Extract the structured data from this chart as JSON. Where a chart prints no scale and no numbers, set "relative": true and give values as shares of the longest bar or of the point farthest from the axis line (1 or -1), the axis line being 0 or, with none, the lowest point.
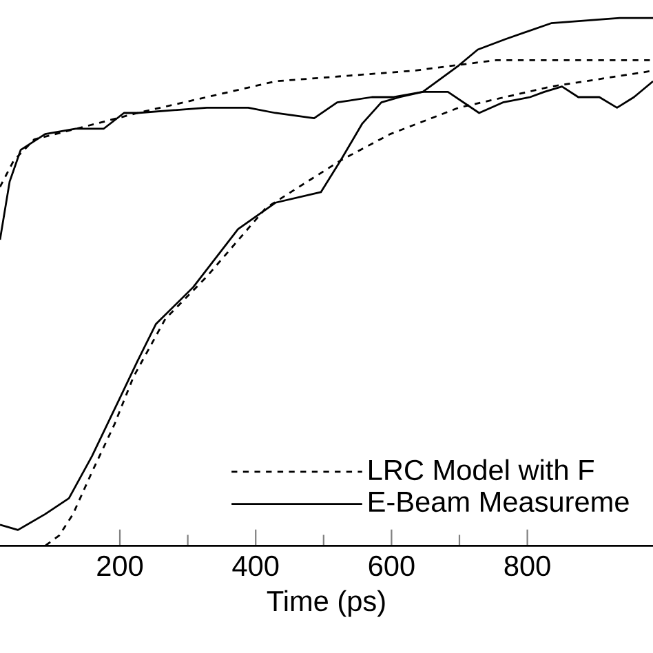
{
  "chart_data": {
    "type": "line",
    "xlabel": "Time (ps)",
    "relative": true,
    "xlim": [
      23.5,
      985
    ],
    "xticks": [
      200,
      400,
      600,
      800
    ],
    "grid": false,
    "legend": "bottom right",
    "marker": "none",
    "series": [
      {
        "name": "LRC Model with F",
        "color": "#000000",
        "line_style": "dashed",
        "x": [
          23.5,
          43.8,
          74,
          105,
          166,
          226,
          328,
          429,
          531,
          632,
          693,
          754,
          835,
          985
        ],
        "values": [
          0.68,
          0.73,
          0.77,
          0.78,
          0.8,
          0.82,
          0.85,
          0.88,
          0.89,
          0.9,
          0.91,
          0.92,
          0.92,
          0.92
        ]
      },
      {
        "name": "E-Beam Measureme",
        "color": "#000000",
        "line_style": "solid",
        "x": [
          23.5,
          37.7,
          54,
          90,
          135,
          176,
          206,
          226,
          328,
          389,
          429,
          486,
          520,
          571,
          602,
          646,
          683,
          729,
          764,
          804,
          825,
          851,
          875,
          906,
          932,
          957,
          985
        ],
        "values": [
          0.58,
          0.69,
          0.75,
          0.78,
          0.79,
          0.79,
          0.82,
          0.82,
          0.83,
          0.83,
          0.82,
          0.81,
          0.84,
          0.85,
          0.85,
          0.86,
          0.86,
          0.82,
          0.84,
          0.85,
          0.86,
          0.87,
          0.85,
          0.85,
          0.83,
          0.85,
          0.88
        ]
      },
      {
        "color": "#000000",
        "line_style": "dashed",
        "x": [
          23.5,
          90,
          111,
          131,
          159,
          192,
          220,
          267,
          328,
          415,
          525,
          598,
          699,
          835,
          985
        ],
        "values": [
          0,
          0,
          0.02,
          0.06,
          0.14,
          0.23,
          0.32,
          0.43,
          0.51,
          0.64,
          0.73,
          0.78,
          0.83,
          0.87,
          0.9
        ]
      },
      {
        "color": "#000000",
        "line_style": "solid",
        "x": [
          23.5,
          49.9,
          90,
          125,
          159,
          200,
          226,
          253,
          308,
          374,
          429,
          496,
          525,
          557,
          585,
          612,
          646,
          699,
          727,
          768,
          835,
          936,
          985
        ],
        "values": [
          0.04,
          0.03,
          0.06,
          0.09,
          0.17,
          0.28,
          0.35,
          0.42,
          0.49,
          0.6,
          0.65,
          0.67,
          0.73,
          0.8,
          0.84,
          0.85,
          0.86,
          0.91,
          0.94,
          0.96,
          0.99,
          1.0,
          1.0
        ]
      }
    ]
  }
}
